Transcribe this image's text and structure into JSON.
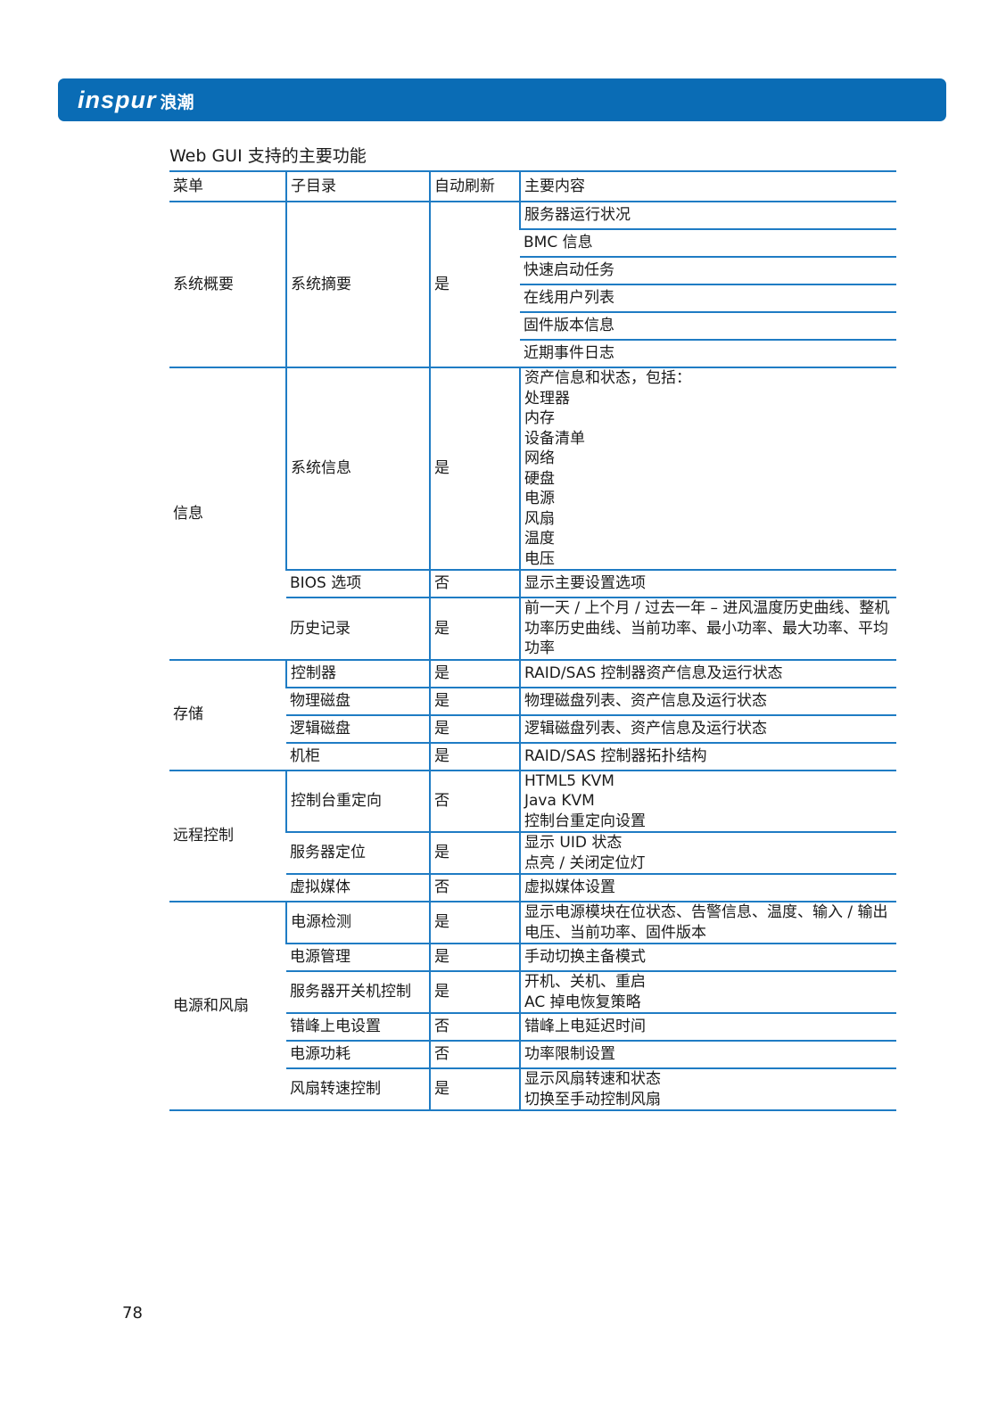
{
  "brand": {
    "logo_latin": "inspur",
    "logo_cn": "浪潮",
    "color": "#0a6cb5"
  },
  "section_title": "Web GUI 支持的主要功能",
  "table": {
    "headers": [
      "菜单",
      "子目录",
      "自动刷新",
      "主要内容"
    ],
    "overview": {
      "menu": "系统概要",
      "sub": "系统摘要",
      "refresh": "是",
      "items": [
        "服务器运行状况",
        "BMC 信息",
        "快速启动任务",
        "在线用户列表",
        "固件版本信息",
        "近期事件日志"
      ]
    },
    "info": {
      "menu": "信息",
      "rows": [
        {
          "sub": "系统信息",
          "refresh": "是",
          "lines": [
            "资产信息和状态，包括：",
            "处理器",
            "内存",
            "设备清单",
            "网络",
            "硬盘",
            "电源",
            "风扇",
            "温度",
            "电压"
          ]
        },
        {
          "sub": "BIOS 选项",
          "refresh": "否",
          "lines": [
            "显示主要设置选项"
          ]
        },
        {
          "sub": "历史记录",
          "refresh": "是",
          "lines": [
            "前一天 / 上个月 / 过去一年  –  进风温度历史曲线、整机功率历史曲线、当前功率、最小功率、最大功率、平均功率"
          ]
        }
      ]
    },
    "storage": {
      "menu": "存储",
      "rows": [
        {
          "sub": "控制器",
          "refresh": "是",
          "lines": [
            "RAID/SAS 控制器资产信息及运行状态"
          ]
        },
        {
          "sub": "物理磁盘",
          "refresh": "是",
          "lines": [
            "物理磁盘列表、资产信息及运行状态"
          ]
        },
        {
          "sub": "逻辑磁盘",
          "refresh": "是",
          "lines": [
            "逻辑磁盘列表、资产信息及运行状态"
          ]
        },
        {
          "sub": "机柜",
          "refresh": "是",
          "lines": [
            "RAID/SAS 控制器拓扑结构"
          ]
        }
      ]
    },
    "remote": {
      "menu": "远程控制",
      "rows": [
        {
          "sub": "控制台重定向",
          "refresh": "否",
          "lines": [
            "HTML5 KVM",
            "Java KVM",
            "控制台重定向设置"
          ]
        },
        {
          "sub": "服务器定位",
          "refresh": "是",
          "lines": [
            "显示 UID 状态",
            "点亮 / 关闭定位灯"
          ]
        },
        {
          "sub": "虚拟媒体",
          "refresh": "否",
          "lines": [
            "虚拟媒体设置"
          ]
        }
      ]
    },
    "power": {
      "menu": "电源和风扇",
      "rows": [
        {
          "sub": "电源检测",
          "refresh": "是",
          "lines": [
            "显示电源模块在位状态、告警信息、温度、输入 / 输出电压、当前功率、固件版本"
          ]
        },
        {
          "sub": "电源管理",
          "refresh": "是",
          "lines": [
            "手动切换主备模式"
          ]
        },
        {
          "sub": "服务器开关机控制",
          "refresh": "是",
          "lines": [
            "开机、关机、重启",
            "AC 掉电恢复策略"
          ]
        },
        {
          "sub": "错峰上电设置",
          "refresh": "否",
          "lines": [
            "错峰上电延迟时间"
          ]
        },
        {
          "sub": "电源功耗",
          "refresh": "否",
          "lines": [
            "功率限制设置"
          ]
        },
        {
          "sub": "风扇转速控制",
          "refresh": "是",
          "lines": [
            "显示风扇转速和状态",
            "切换至手动控制风扇"
          ]
        }
      ]
    }
  },
  "page_number": "78"
}
